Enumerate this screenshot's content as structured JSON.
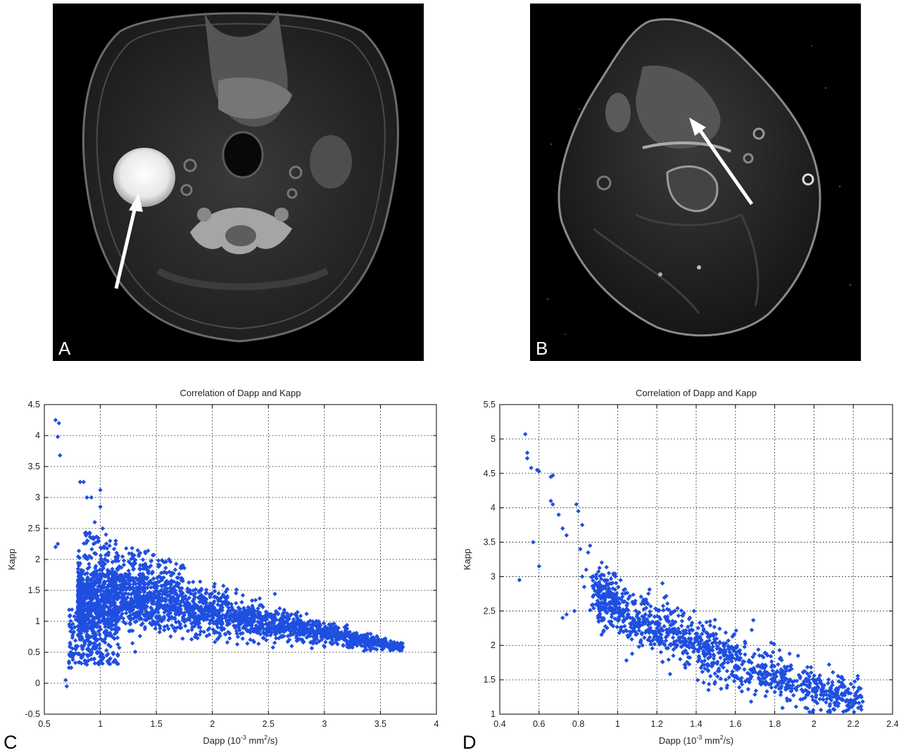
{
  "panels": {
    "a": "A",
    "b": "B",
    "c": "C",
    "d": "D"
  },
  "colors": {
    "points": "#1f4fe0",
    "image_background": "#000000",
    "arrow": "#ffffff"
  },
  "chart_data": [
    {
      "type": "scatter",
      "title": "Correlation of Dapp and Kapp",
      "xlabel_prefix": "Dapp (10",
      "xlabel_exp": "-3",
      "xlabel_mid": " mm",
      "xlabel_sq": "2",
      "xlabel_suffix": "/s)",
      "ylabel": "Kapp",
      "xlim": [
        0.5,
        4
      ],
      "ylim": [
        -0.5,
        4.5
      ],
      "xticks": [
        "0.5",
        "1",
        "1.5",
        "2",
        "2.5",
        "3",
        "3.5",
        "4"
      ],
      "yticks": [
        "-0.5",
        "0",
        "0.5",
        "1",
        "1.5",
        "2",
        "2.5",
        "3",
        "3.5",
        "4",
        "4.5"
      ],
      "grid": true,
      "marker": "diamond",
      "points_cloud": "dense band from (0.8, 0.9–2.2) decaying to (3.7, 0.55)",
      "points": [
        [
          0.6,
          4.25
        ],
        [
          0.63,
          4.2
        ],
        [
          0.62,
          3.98
        ],
        [
          0.64,
          3.68
        ],
        [
          0.6,
          2.2
        ],
        [
          0.62,
          2.25
        ],
        [
          0.7,
          -0.05
        ],
        [
          0.69,
          0.05
        ],
        [
          0.72,
          0.25
        ],
        [
          0.74,
          0.25
        ],
        [
          0.72,
          0.35
        ],
        [
          0.82,
          3.25
        ],
        [
          0.85,
          3.25
        ],
        [
          0.88,
          3.0
        ],
        [
          0.92,
          3.0
        ],
        [
          1.0,
          3.12
        ],
        [
          1.0,
          2.85
        ],
        [
          1.02,
          2.5
        ],
        [
          1.05,
          2.4
        ],
        [
          0.95,
          2.6
        ]
      ]
    },
    {
      "type": "scatter",
      "title": "Correlation of Dapp and Kapp",
      "xlabel_prefix": "Dapp (10",
      "xlabel_exp": "-3",
      "xlabel_mid": " mm",
      "xlabel_sq": "2",
      "xlabel_suffix": "/s)",
      "ylabel": "Kapp",
      "xlim": [
        0.4,
        2.4
      ],
      "ylim": [
        1,
        5.5
      ],
      "xticks": [
        "0.4",
        "0.6",
        "0.8",
        "1",
        "1.2",
        "1.4",
        "1.6",
        "1.8",
        "2",
        "2.2",
        "2.4"
      ],
      "yticks": [
        "1",
        "1.5",
        "2",
        "2.5",
        "3",
        "3.5",
        "4",
        "4.5",
        "5",
        "5.5"
      ],
      "grid": true,
      "marker": "diamond",
      "points_cloud": "band decaying from (0.55, 4.6) to (2.25, 1.2)",
      "points": [
        [
          0.53,
          5.07
        ],
        [
          0.54,
          4.8
        ],
        [
          0.54,
          4.72
        ],
        [
          0.56,
          4.58
        ],
        [
          0.59,
          4.55
        ],
        [
          0.6,
          4.53
        ],
        [
          0.57,
          3.5
        ],
        [
          0.5,
          2.95
        ],
        [
          0.6,
          3.15
        ],
        [
          0.66,
          4.45
        ],
        [
          0.67,
          4.47
        ],
        [
          0.66,
          4.1
        ],
        [
          0.67,
          4.05
        ],
        [
          0.7,
          3.9
        ],
        [
          0.72,
          3.7
        ],
        [
          0.74,
          3.6
        ],
        [
          0.79,
          4.05
        ],
        [
          0.8,
          3.95
        ],
        [
          0.82,
          3.75
        ],
        [
          0.81,
          3.4
        ],
        [
          0.82,
          3.0
        ],
        [
          0.84,
          3.1
        ],
        [
          0.83,
          2.85
        ],
        [
          0.72,
          2.4
        ],
        [
          0.74,
          2.45
        ],
        [
          0.78,
          2.5
        ],
        [
          0.86,
          3.45
        ],
        [
          0.85,
          3.35
        ]
      ]
    }
  ]
}
